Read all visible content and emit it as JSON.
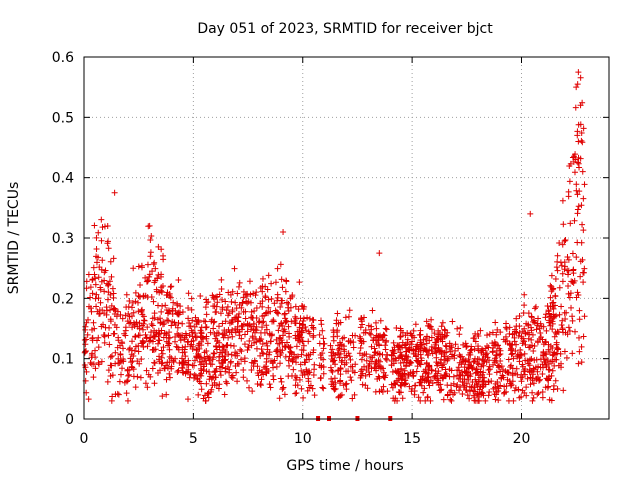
{
  "chart_data": {
    "type": "scatter",
    "title": "Day 051 of 2023, SRMTID for receiver bjct",
    "xlabel": "GPS time / hours",
    "ylabel": "SRMTID / TECUs",
    "xlim": [
      0,
      24
    ],
    "ylim": [
      0,
      0.6
    ],
    "xticks": [
      0,
      5,
      10,
      15,
      20
    ],
    "yticks": [
      0,
      0.1,
      0.2,
      0.3,
      0.4,
      0.5,
      0.6
    ],
    "xtick_labels": [
      "0",
      "5",
      "10",
      "15",
      "20"
    ],
    "ytick_labels": [
      "0",
      "0.1",
      "0.2",
      "0.3",
      "0.4",
      "0.5",
      "0.6"
    ],
    "grid": true,
    "marker": "+",
    "color": "#e00000",
    "envelope_x": [
      0,
      0.5,
      1,
      1.5,
      2,
      3,
      4,
      5,
      6,
      7,
      8,
      9,
      10,
      11,
      12,
      13,
      14,
      15,
      16,
      17,
      18,
      19,
      20,
      21,
      21.5,
      22,
      22.5,
      23
    ],
    "envelope_y": [
      0.12,
      0.18,
      0.2,
      0.13,
      0.12,
      0.19,
      0.14,
      0.12,
      0.12,
      0.15,
      0.13,
      0.15,
      0.12,
      0.09,
      0.1,
      0.11,
      0.09,
      0.09,
      0.1,
      0.09,
      0.08,
      0.09,
      0.12,
      0.1,
      0.15,
      0.22,
      0.3,
      0.38
    ],
    "outliers": [
      {
        "x": 1.4,
        "y": 0.375
      },
      {
        "x": 3.0,
        "y": 0.32
      },
      {
        "x": 9.1,
        "y": 0.31
      },
      {
        "x": 13.5,
        "y": 0.275
      },
      {
        "x": 20.4,
        "y": 0.34
      },
      {
        "x": 22.6,
        "y": 0.575
      },
      {
        "x": 22.5,
        "y": 0.55
      },
      {
        "x": 22.7,
        "y": 0.52
      },
      {
        "x": 22.6,
        "y": 0.46
      },
      {
        "x": 22.8,
        "y": 0.41
      }
    ],
    "zero_flags_x": [
      10.7,
      11.2,
      12.5,
      14.0
    ]
  }
}
